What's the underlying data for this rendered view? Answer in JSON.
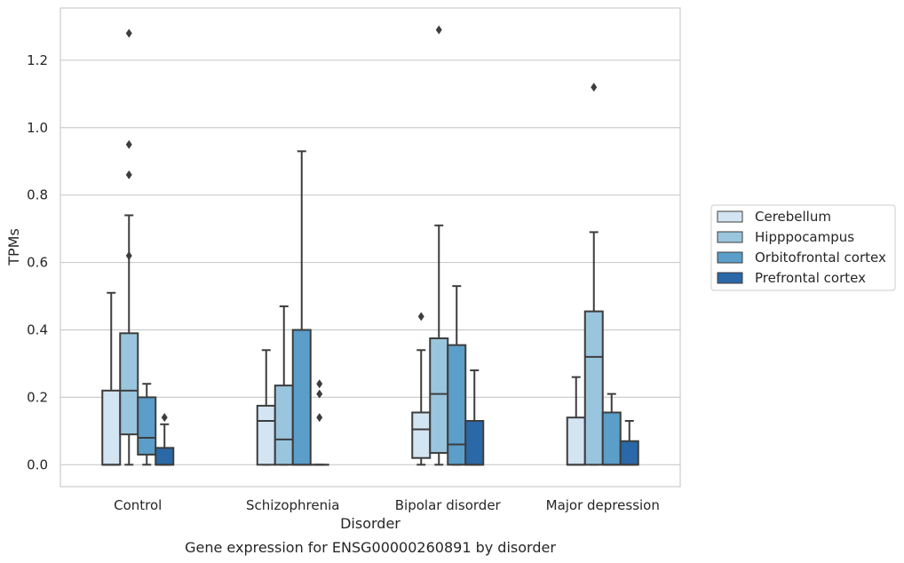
{
  "chart_data": {
    "type": "box",
    "title": "",
    "caption": "Gene expression for ENSG00000260891 by disorder",
    "xlabel": "Disorder",
    "ylabel": "TPMs",
    "ylim": [
      -0.065,
      1.355
    ],
    "yticks": [
      "0.0",
      "0.2",
      "0.4",
      "0.6",
      "0.8",
      "1.0",
      "1.2"
    ],
    "grid": true,
    "legend_position": "right",
    "categories": [
      "Control",
      "Schizophrenia",
      "Bipolar disorder",
      "Major depression"
    ],
    "series": [
      {
        "name": "Cerebellum",
        "color": "#d3e4f3",
        "boxes": [
          {
            "whisker_low": 0.0,
            "q1": 0.0,
            "median": 0.0,
            "q3": 0.22,
            "whisker_high": 0.51,
            "outliers": []
          },
          {
            "whisker_low": 0.0,
            "q1": 0.0,
            "median": 0.13,
            "q3": 0.175,
            "whisker_high": 0.34,
            "outliers": []
          },
          {
            "whisker_low": 0.0,
            "q1": 0.02,
            "median": 0.105,
            "q3": 0.155,
            "whisker_high": 0.34,
            "outliers": [
              0.44
            ]
          },
          {
            "whisker_low": 0.0,
            "q1": 0.0,
            "median": 0.0,
            "q3": 0.14,
            "whisker_high": 0.26,
            "outliers": []
          }
        ]
      },
      {
        "name": "Hipppocampus",
        "color": "#9ac5de",
        "boxes": [
          {
            "whisker_low": 0.0,
            "q1": 0.09,
            "median": 0.22,
            "q3": 0.39,
            "whisker_high": 0.74,
            "outliers": [
              0.62,
              0.86,
              0.95,
              1.28
            ]
          },
          {
            "whisker_low": 0.0,
            "q1": 0.0,
            "median": 0.075,
            "q3": 0.235,
            "whisker_high": 0.47,
            "outliers": []
          },
          {
            "whisker_low": 0.0,
            "q1": 0.035,
            "median": 0.21,
            "q3": 0.375,
            "whisker_high": 0.71,
            "outliers": [
              1.29
            ]
          },
          {
            "whisker_low": 0.0,
            "q1": 0.0,
            "median": 0.32,
            "q3": 0.455,
            "whisker_high": 0.69,
            "outliers": [
              1.12
            ]
          }
        ]
      },
      {
        "name": "Orbitofrontal cortex",
        "color": "#5a9ec9",
        "boxes": [
          {
            "whisker_low": 0.0,
            "q1": 0.03,
            "median": 0.08,
            "q3": 0.2,
            "whisker_high": 0.24,
            "outliers": []
          },
          {
            "whisker_low": 0.0,
            "q1": 0.0,
            "median": 0.0,
            "q3": 0.4,
            "whisker_high": 0.93,
            "outliers": []
          },
          {
            "whisker_low": 0.0,
            "q1": 0.0,
            "median": 0.06,
            "q3": 0.355,
            "whisker_high": 0.53,
            "outliers": []
          },
          {
            "whisker_low": 0.0,
            "q1": 0.0,
            "median": 0.0,
            "q3": 0.155,
            "whisker_high": 0.21,
            "outliers": []
          }
        ]
      },
      {
        "name": "Prefrontal cortex",
        "color": "#2a68a8",
        "boxes": [
          {
            "whisker_low": 0.0,
            "q1": 0.0,
            "median": 0.0,
            "q3": 0.05,
            "whisker_high": 0.12,
            "outliers": [
              0.14
            ]
          },
          {
            "whisker_low": 0.0,
            "q1": 0.0,
            "median": 0.0,
            "q3": 0.0,
            "whisker_high": 0.0,
            "outliers": [
              0.14,
              0.21,
              0.24
            ]
          },
          {
            "whisker_low": 0.0,
            "q1": 0.0,
            "median": 0.0,
            "q3": 0.13,
            "whisker_high": 0.28,
            "outliers": []
          },
          {
            "whisker_low": 0.0,
            "q1": 0.0,
            "median": 0.0,
            "q3": 0.07,
            "whisker_high": 0.13,
            "outliers": []
          }
        ]
      }
    ]
  }
}
